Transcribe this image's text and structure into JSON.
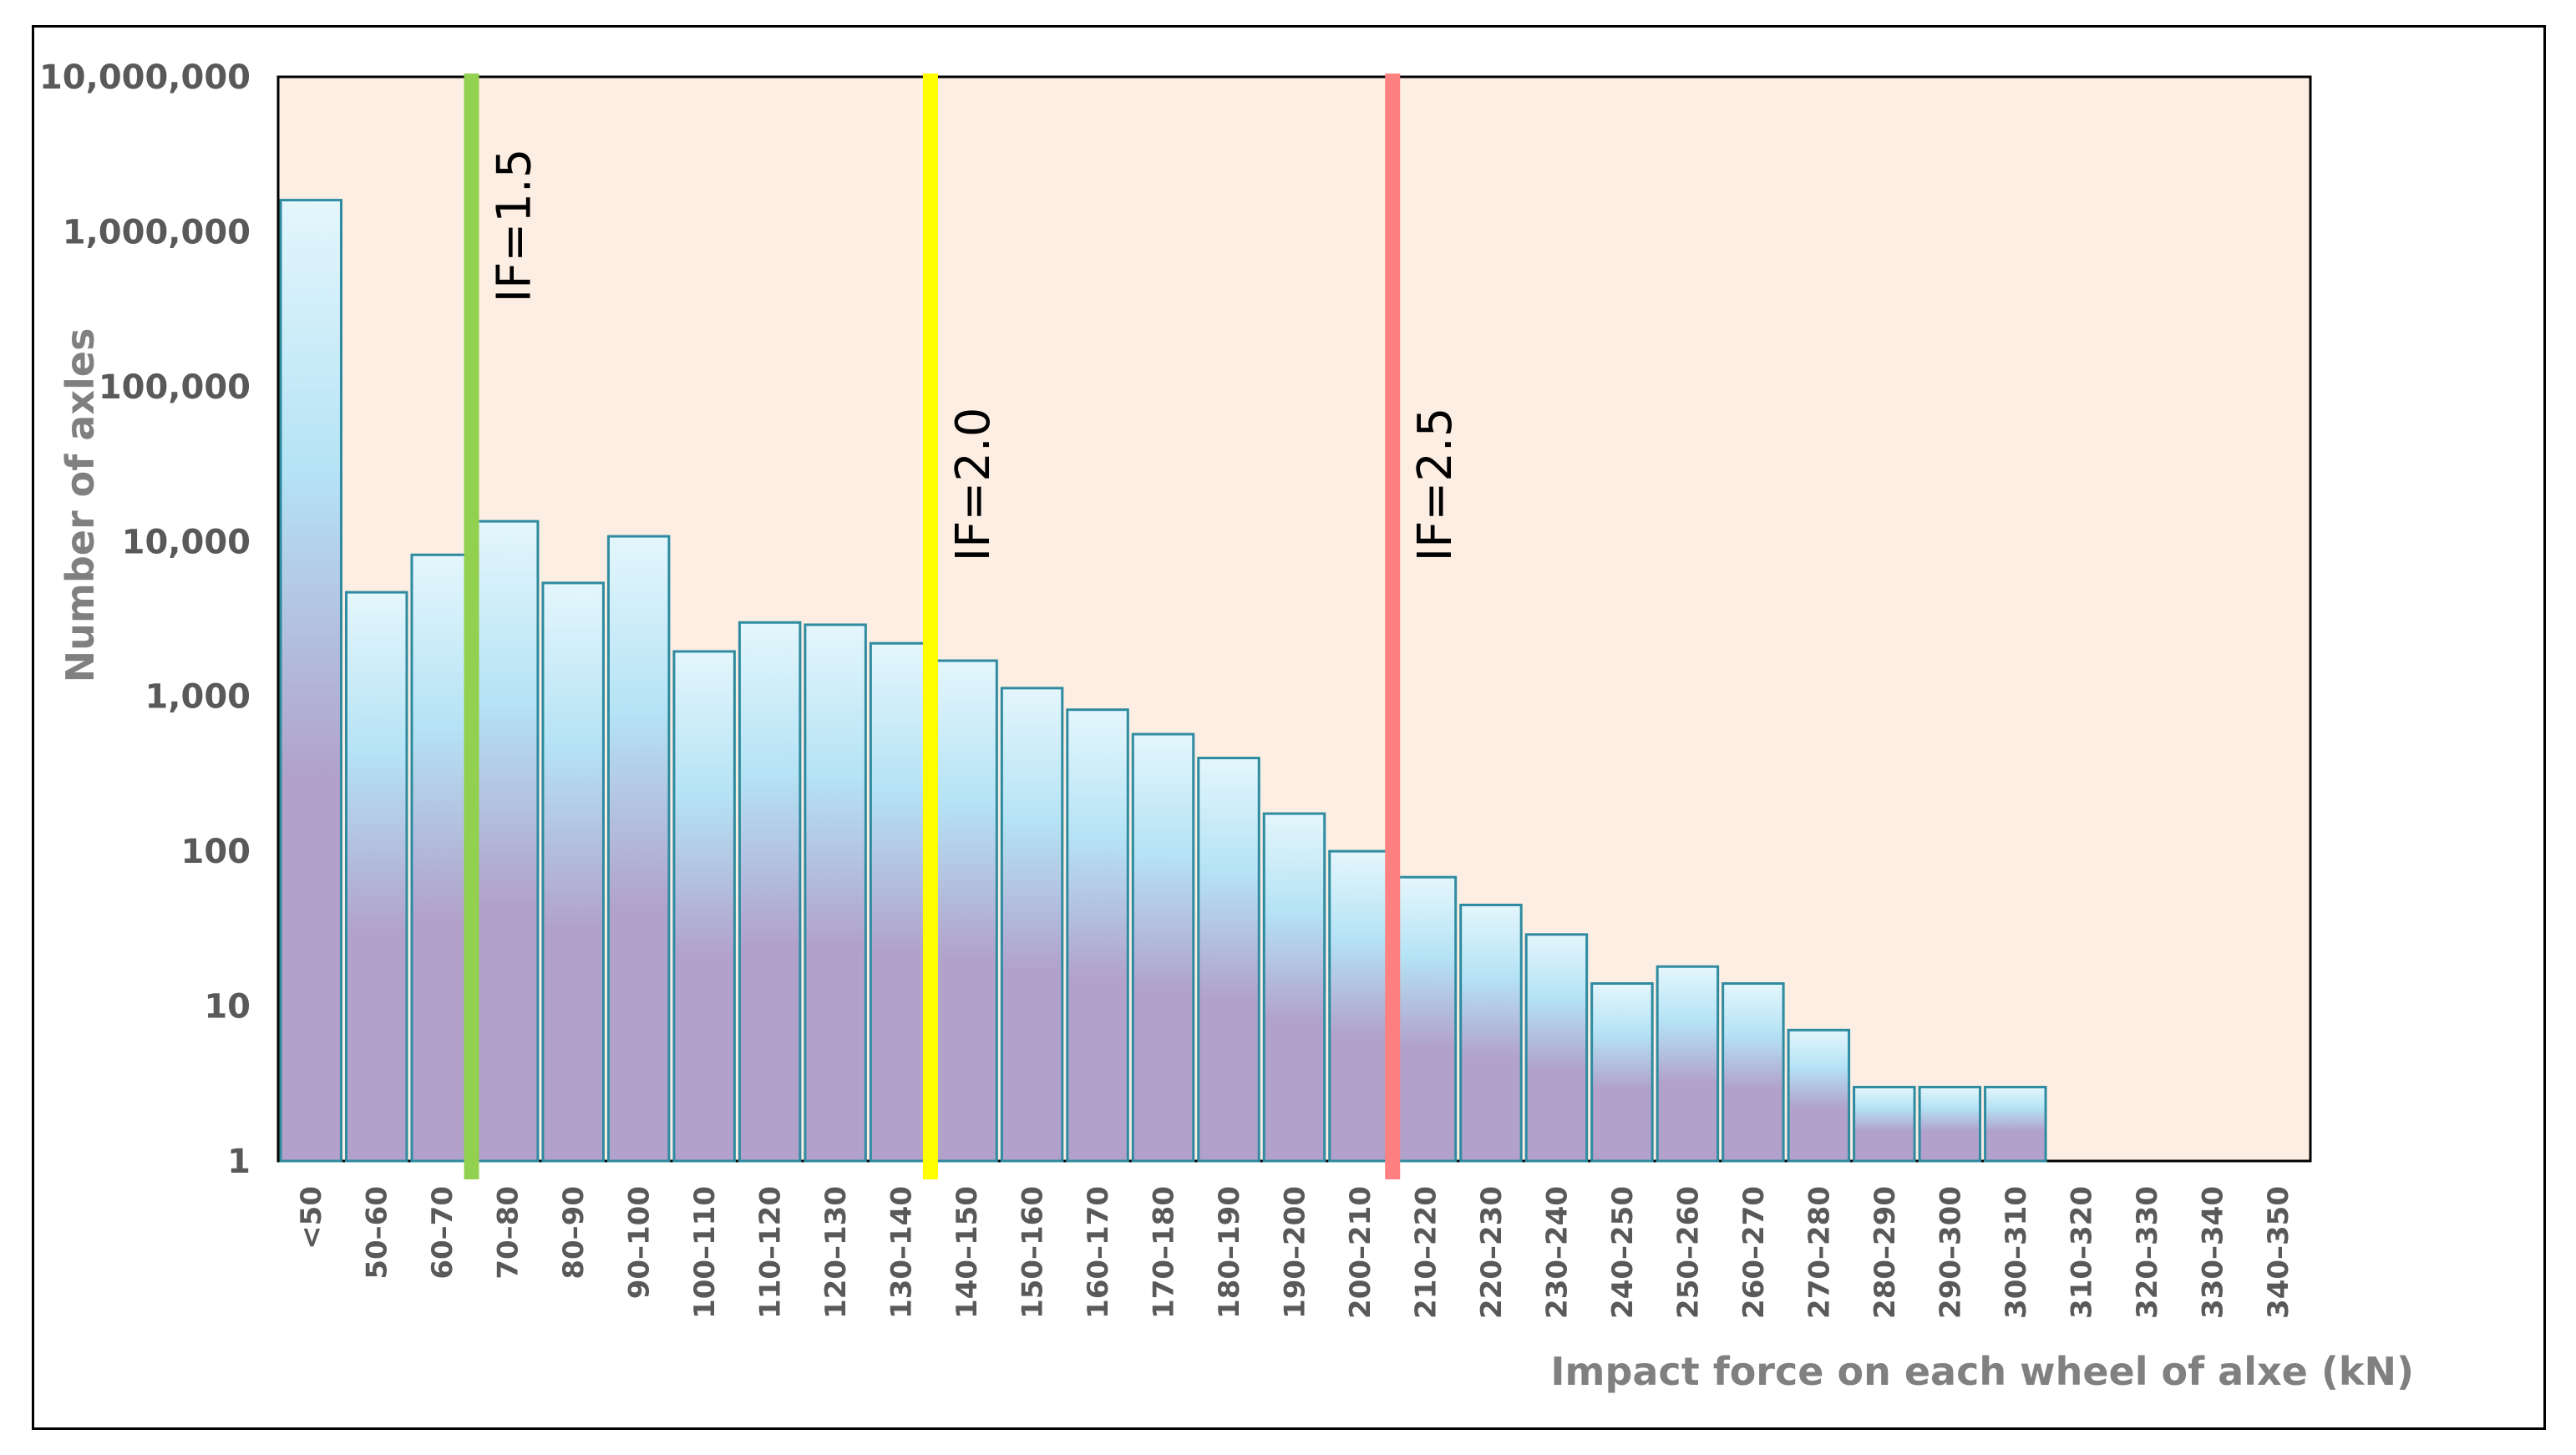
{
  "chart_data": {
    "type": "bar",
    "title": "",
    "xlabel": "Impact force on each wheel of alxe (kN)",
    "ylabel": "Number of axles",
    "yscale": "log",
    "ylim": [
      1,
      10000000
    ],
    "grid": false,
    "legend": "none",
    "y_ticks": [
      "1",
      "10",
      "100",
      "1,000",
      "10,000",
      "100,000",
      "1,000,000",
      "10,000,000"
    ],
    "categories": [
      "<50",
      "50–60",
      "60–70",
      "70–80",
      "80–90",
      "90–100",
      "100–110",
      "110–120",
      "120–130",
      "130–140",
      "140–150",
      "150–160",
      "160–170",
      "170–180",
      "180–190",
      "190–200",
      "200–210",
      "210–220",
      "220–230",
      "230–240",
      "240–250",
      "250–260",
      "260–270",
      "270–280",
      "280–290",
      "290–300",
      "300–310",
      "310–320",
      "320–330",
      "330–340",
      "340–350"
    ],
    "values": [
      1600000,
      4700,
      8200,
      13500,
      5400,
      10800,
      1950,
      3000,
      2900,
      2200,
      1700,
      1130,
      820,
      570,
      400,
      175,
      100,
      68,
      45,
      29,
      14,
      18,
      14,
      7,
      3,
      3,
      3,
      1,
      1,
      1,
      1
    ],
    "reference_lines": [
      {
        "label": "IF=1.5",
        "x_position": 2.95,
        "color": "#92D050"
      },
      {
        "label": "IF=2.0",
        "x_position": 9.95,
        "color": "#FFFF00"
      },
      {
        "label": "IF=2.5",
        "x_position": 17.0,
        "color": "#FF8080"
      }
    ],
    "colors": {
      "plot_background": "#FDEEE4",
      "bar_top": "#E4F6FC",
      "bar_mid": "#B5E3F5",
      "bar_bottom": "#B1A1CB",
      "bar_stroke": "#2E8BA0",
      "tick_text": "#595959",
      "axis_title": "#808080"
    }
  }
}
